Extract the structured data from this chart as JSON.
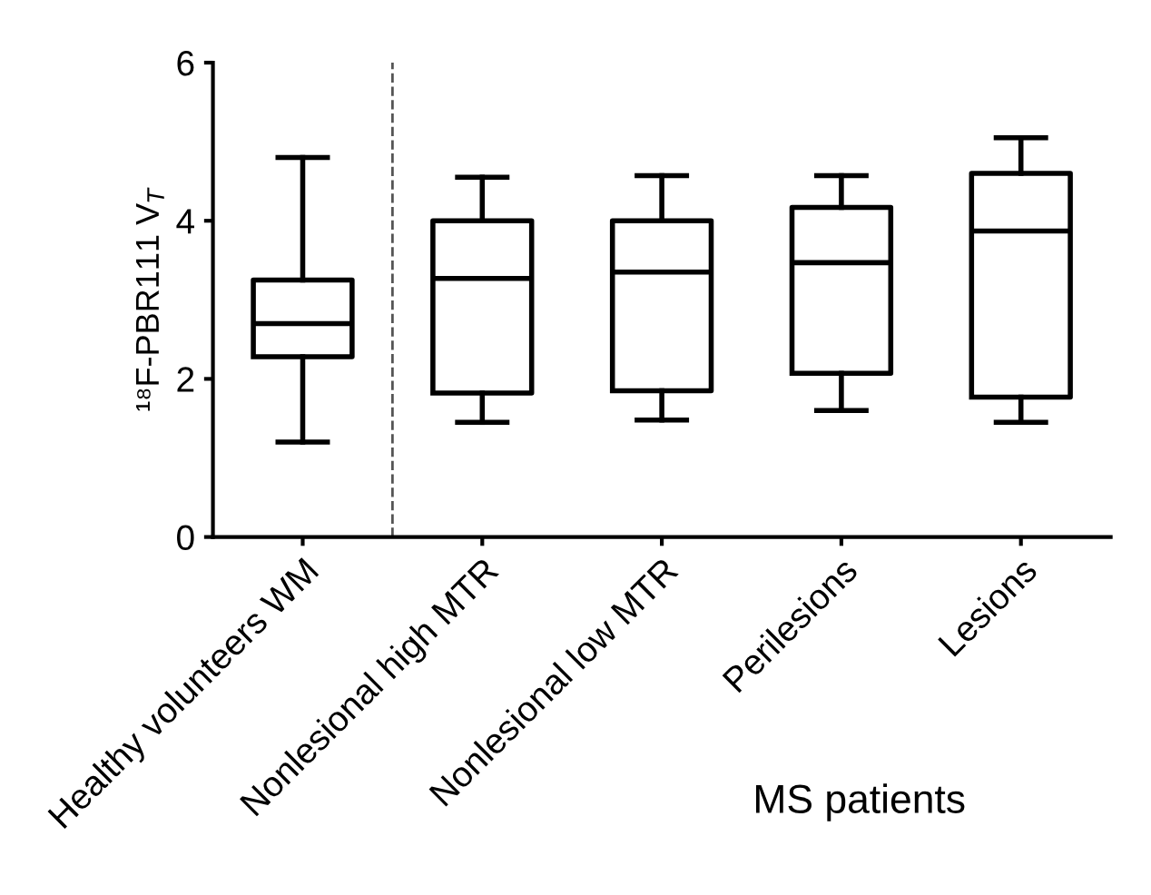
{
  "chart_data": {
    "type": "box",
    "xlabel": "MS patients",
    "ylabel": "¹⁸F-PBR111 V$_{T}$",
    "categories": [
      "Healthy volunteers WM",
      "Nonlesional high MTR",
      "Nonlesional low MTR",
      "Perilesions",
      "Lesions"
    ],
    "boxes": [
      {
        "low": 1.2,
        "q1": 2.28,
        "median": 2.7,
        "q3": 3.25,
        "high": 4.8
      },
      {
        "low": 1.45,
        "q1": 1.82,
        "median": 3.27,
        "q3": 4.0,
        "high": 4.55
      },
      {
        "low": 1.48,
        "q1": 1.85,
        "median": 3.35,
        "q3": 4.0,
        "high": 4.57
      },
      {
        "low": 1.6,
        "q1": 2.07,
        "median": 3.47,
        "q3": 4.17,
        "high": 4.57
      },
      {
        "low": 1.45,
        "q1": 1.77,
        "median": 3.87,
        "q3": 4.6,
        "high": 5.05
      }
    ],
    "ylim": [
      0,
      6
    ],
    "yticks": [
      0,
      2,
      4,
      6
    ],
    "grid": false
  }
}
